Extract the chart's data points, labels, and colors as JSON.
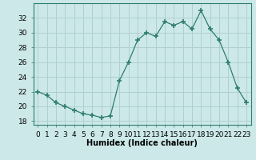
{
  "x": [
    0,
    1,
    2,
    3,
    4,
    5,
    6,
    7,
    8,
    9,
    10,
    11,
    12,
    13,
    14,
    15,
    16,
    17,
    18,
    19,
    20,
    21,
    22,
    23
  ],
  "y": [
    22.0,
    21.5,
    20.5,
    20.0,
    19.5,
    19.0,
    18.8,
    18.5,
    18.7,
    23.5,
    26.0,
    29.0,
    30.0,
    29.5,
    31.5,
    31.0,
    31.5,
    30.5,
    33.0,
    30.5,
    29.0,
    26.0,
    22.5,
    20.5
  ],
  "xlabel": "Humidex (Indice chaleur)",
  "xlim": [
    -0.5,
    23.5
  ],
  "ylim": [
    17.5,
    34
  ],
  "yticks": [
    18,
    20,
    22,
    24,
    26,
    28,
    30,
    32
  ],
  "xticks": [
    0,
    1,
    2,
    3,
    4,
    5,
    6,
    7,
    8,
    9,
    10,
    11,
    12,
    13,
    14,
    15,
    16,
    17,
    18,
    19,
    20,
    21,
    22,
    23
  ],
  "xtick_labels": [
    "0",
    "1",
    "2",
    "3",
    "4",
    "5",
    "6",
    "7",
    "8",
    "9",
    "10",
    "11",
    "12",
    "13",
    "14",
    "15",
    "16",
    "17",
    "18",
    "19",
    "20",
    "21",
    "22",
    "23"
  ],
  "line_color": "#2e7d6e",
  "marker": "+",
  "marker_size": 4,
  "marker_lw": 1.2,
  "bg_color": "#cce8e8",
  "grid_color": "#b0d0d0",
  "label_fontsize": 7,
  "tick_fontsize": 6.5
}
